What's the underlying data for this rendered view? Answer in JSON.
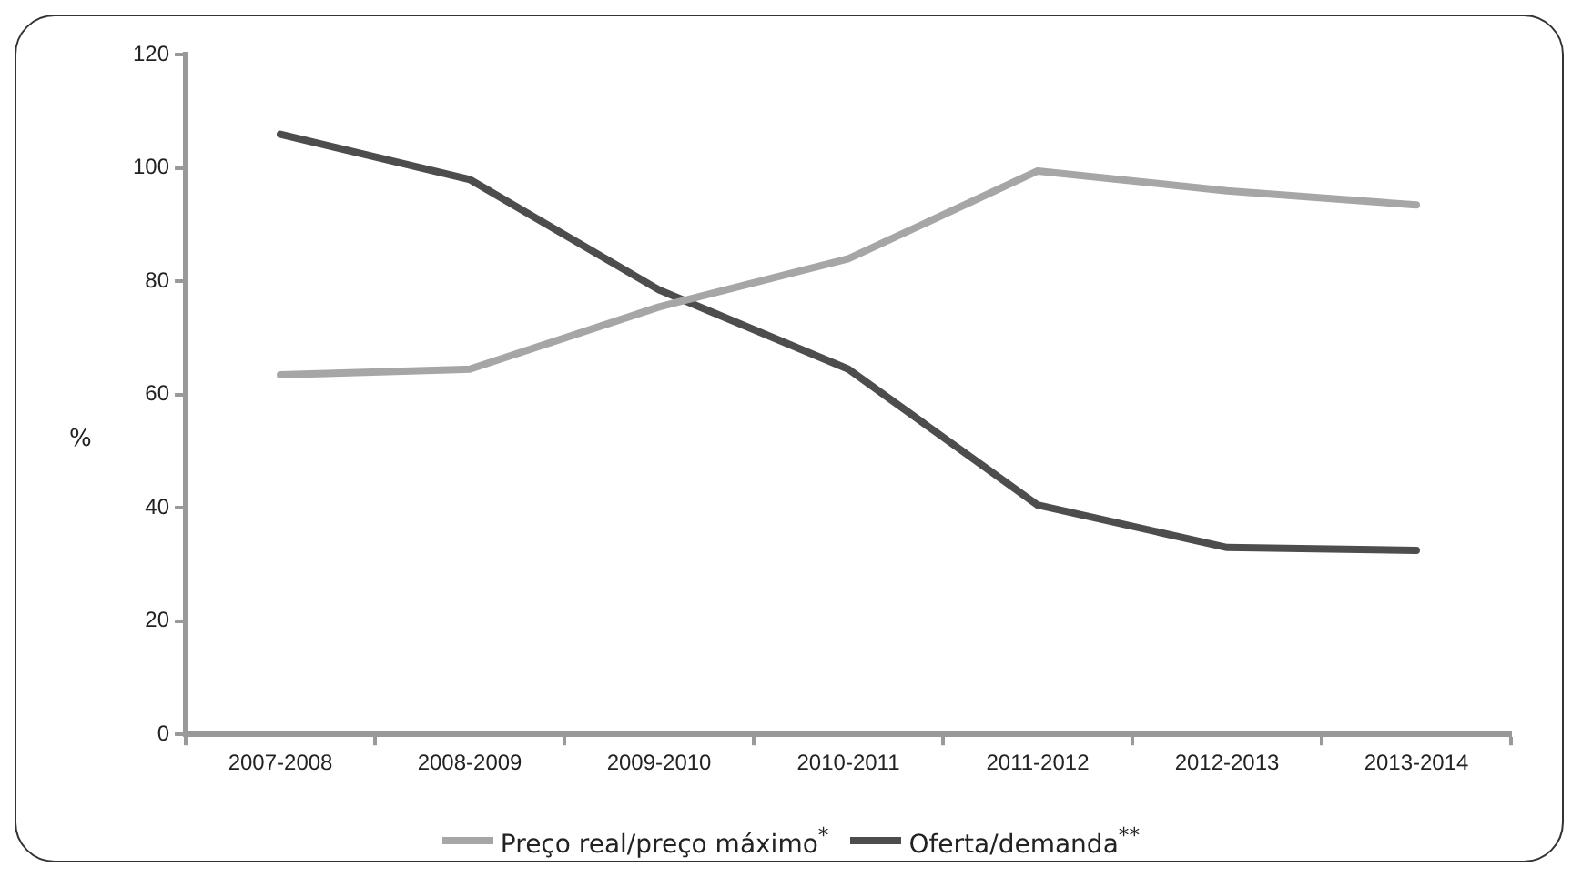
{
  "chart_data": {
    "type": "line",
    "ylabel": "%",
    "categories": [
      "2007-2008",
      "2008-2009",
      "2009-2010",
      "2010-2011",
      "2011-2012",
      "2012-2013",
      "2013-2014"
    ],
    "series": [
      {
        "name": "Preço real/preço máximo$^{*}$",
        "color": "#a6a6a6",
        "values": [
          63.5,
          64.5,
          75.5,
          84,
          99.5,
          96,
          93.5
        ]
      },
      {
        "name": "Oferta/demanda$^{**}$",
        "color": "#4d4d4d",
        "values": [
          106,
          98,
          78.5,
          64.5,
          40.5,
          33,
          32.5
        ]
      }
    ],
    "ylim": [
      0,
      120
    ],
    "yticks": [
      0,
      20,
      40,
      60,
      80,
      100,
      120
    ],
    "grid": false,
    "legend": "bottom",
    "marker": "none",
    "line_style": "solid"
  }
}
